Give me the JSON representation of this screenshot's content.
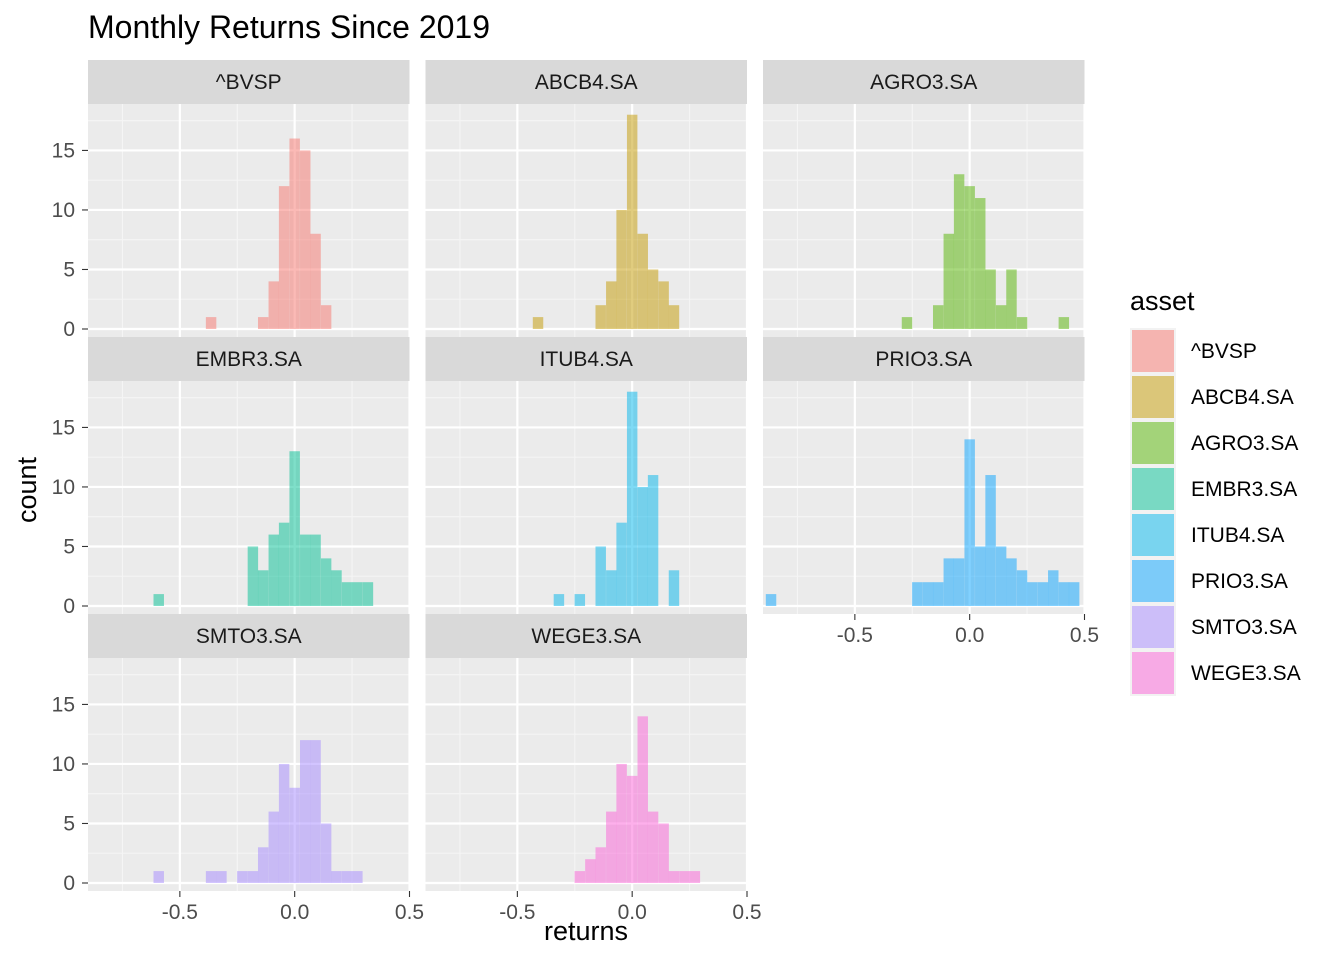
{
  "chart_data": {
    "type": "histogram",
    "title": "Monthly Returns Since 2019",
    "xlabel": "returns",
    "ylabel": "count",
    "xlim": [
      -0.9,
      0.5
    ],
    "ylim": [
      0,
      18
    ],
    "x_ticks": [
      -0.5,
      0.0,
      0.5
    ],
    "x_tick_labels": [
      "-0.5",
      "0.0",
      "0.5"
    ],
    "y_ticks": [
      0,
      5,
      10,
      15
    ],
    "y_tick_labels": [
      "0",
      "5",
      "10",
      "15"
    ],
    "grid": true,
    "legend": {
      "title": "asset",
      "position": "right"
    },
    "bin_width": 0.0455,
    "panels": [
      {
        "name": "^BVSP",
        "color": "#F8766D",
        "bins": [
          [
            -0.364,
            1
          ],
          [
            -0.137,
            1
          ],
          [
            -0.091,
            4
          ],
          [
            -0.046,
            12
          ],
          [
            0.0,
            16
          ],
          [
            0.046,
            15
          ],
          [
            0.091,
            8
          ],
          [
            0.137,
            2
          ]
        ]
      },
      {
        "name": "ABCB4.SA",
        "color": "#C49A00",
        "bins": [
          [
            -0.41,
            1
          ],
          [
            -0.137,
            2
          ],
          [
            -0.091,
            4
          ],
          [
            -0.046,
            10
          ],
          [
            0.0,
            18
          ],
          [
            0.046,
            8
          ],
          [
            0.091,
            5
          ],
          [
            0.137,
            4
          ],
          [
            0.182,
            2
          ]
        ]
      },
      {
        "name": "AGRO3.SA",
        "color": "#53B400",
        "bins": [
          [
            -0.273,
            1
          ],
          [
            -0.137,
            2
          ],
          [
            -0.091,
            8
          ],
          [
            -0.046,
            13
          ],
          [
            0.0,
            12
          ],
          [
            0.046,
            11
          ],
          [
            0.091,
            5
          ],
          [
            0.137,
            2
          ],
          [
            0.182,
            5
          ],
          [
            0.228,
            1
          ],
          [
            0.41,
            1
          ]
        ]
      },
      {
        "name": "EMBR3.SA",
        "color": "#00C094",
        "bins": [
          [
            -0.592,
            1
          ],
          [
            -0.182,
            5
          ],
          [
            -0.137,
            3
          ],
          [
            -0.091,
            6
          ],
          [
            -0.046,
            7
          ],
          [
            0.0,
            13
          ],
          [
            0.046,
            6
          ],
          [
            0.091,
            6
          ],
          [
            0.137,
            4
          ],
          [
            0.182,
            3
          ],
          [
            0.228,
            2
          ],
          [
            0.273,
            2
          ],
          [
            0.319,
            2
          ]
        ]
      },
      {
        "name": "ITUB4.SA",
        "color": "#00B6EB",
        "bins": [
          [
            -0.319,
            1
          ],
          [
            -0.228,
            1
          ],
          [
            -0.137,
            5
          ],
          [
            -0.091,
            3
          ],
          [
            -0.046,
            7
          ],
          [
            0.0,
            18
          ],
          [
            0.046,
            10
          ],
          [
            0.091,
            11
          ],
          [
            0.182,
            3
          ]
        ]
      },
      {
        "name": "PRIO3.SA",
        "color": "#06A4FF",
        "bins": [
          [
            -0.865,
            1
          ],
          [
            -0.228,
            2
          ],
          [
            -0.182,
            2
          ],
          [
            -0.137,
            2
          ],
          [
            -0.091,
            4
          ],
          [
            -0.046,
            4
          ],
          [
            0.0,
            14
          ],
          [
            0.046,
            5
          ],
          [
            0.091,
            11
          ],
          [
            0.137,
            5
          ],
          [
            0.182,
            4
          ],
          [
            0.228,
            3
          ],
          [
            0.273,
            2
          ],
          [
            0.319,
            2
          ],
          [
            0.364,
            3
          ],
          [
            0.41,
            2
          ],
          [
            0.455,
            2
          ]
        ]
      },
      {
        "name": "SMTO3.SA",
        "color": "#A58AFF",
        "bins": [
          [
            -0.592,
            1
          ],
          [
            -0.364,
            1
          ],
          [
            -0.319,
            1
          ],
          [
            -0.228,
            1
          ],
          [
            -0.182,
            1
          ],
          [
            -0.137,
            3
          ],
          [
            -0.091,
            6
          ],
          [
            -0.046,
            10
          ],
          [
            0.0,
            8
          ],
          [
            0.046,
            12
          ],
          [
            0.091,
            12
          ],
          [
            0.137,
            5
          ],
          [
            0.182,
            1
          ],
          [
            0.228,
            1
          ],
          [
            0.273,
            1
          ]
        ]
      },
      {
        "name": "WEGE3.SA",
        "color": "#FB61D7",
        "bins": [
          [
            -0.228,
            1
          ],
          [
            -0.182,
            2
          ],
          [
            -0.137,
            3
          ],
          [
            -0.091,
            6
          ],
          [
            -0.046,
            10
          ],
          [
            0.0,
            9
          ],
          [
            0.046,
            14
          ],
          [
            0.091,
            6
          ],
          [
            0.137,
            5
          ],
          [
            0.182,
            1
          ],
          [
            0.228,
            1
          ],
          [
            0.273,
            1
          ]
        ]
      }
    ]
  }
}
